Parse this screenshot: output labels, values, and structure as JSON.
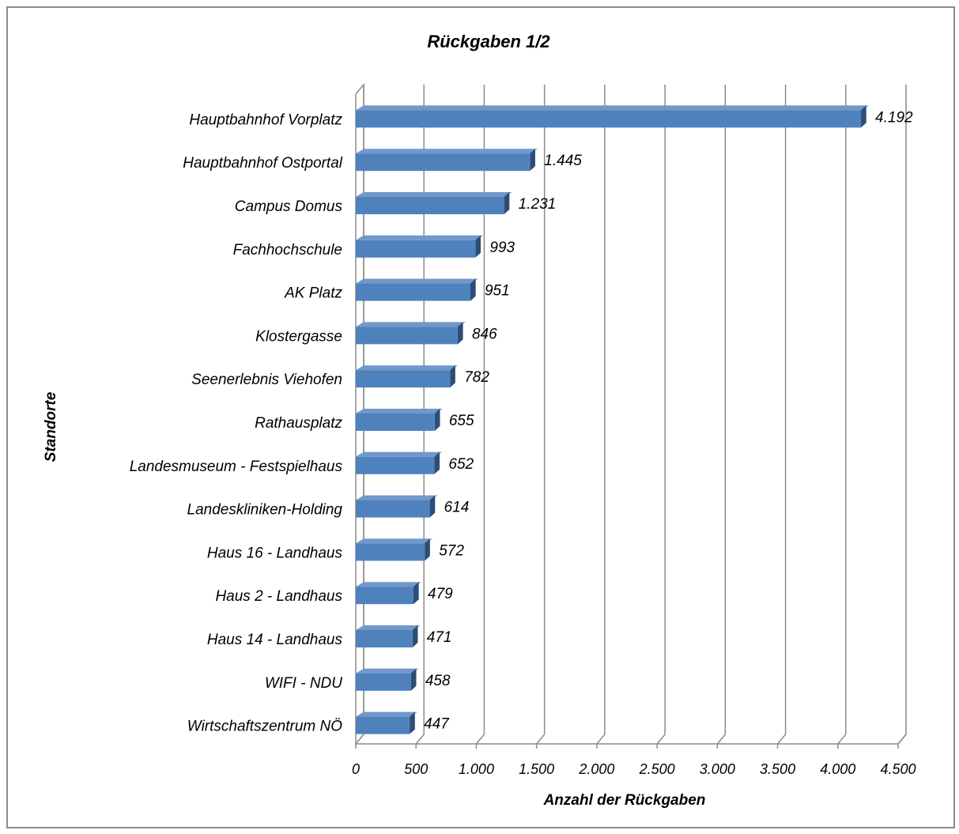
{
  "chart_data": {
    "type": "bar",
    "orientation": "horizontal",
    "title": "Rückgaben 1/2",
    "xlabel": "Anzahl der Rückgaben",
    "ylabel": "Standorte",
    "xlim": [
      0,
      4500
    ],
    "x_ticks": [
      0,
      500,
      1000,
      1500,
      2000,
      2500,
      3000,
      3500,
      4000,
      4500
    ],
    "x_tick_labels": [
      "0",
      "500",
      "1.000",
      "1.500",
      "2.000",
      "2.500",
      "3.000",
      "3.500",
      "4.000",
      "4.500"
    ],
    "grid": true,
    "legend": "none",
    "style": "3d",
    "colors": {
      "bar": "#4f81bd",
      "bar_top": "#7198c9",
      "bar_side": "#2c4d75",
      "grid": "#8c8c8c"
    },
    "categories": [
      "Hauptbahnhof Vorplatz",
      "Hauptbahnhof Ostportal",
      "Campus Domus",
      "Fachhochschule",
      "AK Platz",
      "Klostergasse",
      "Seenerlebnis Viehofen",
      "Rathausplatz",
      "Landesmuseum - Festspielhaus",
      "Landeskliniken-Holding",
      "Haus 16 - Landhaus",
      "Haus 2 - Landhaus",
      "Haus 14 - Landhaus",
      "WIFI - NDU",
      "Wirtschaftszentrum NÖ"
    ],
    "values": [
      4192,
      1445,
      1231,
      993,
      951,
      846,
      782,
      655,
      652,
      614,
      572,
      479,
      471,
      458,
      447
    ],
    "data_labels": [
      "4.192",
      "1.445",
      "1.231",
      "993",
      "951",
      "846",
      "782",
      "655",
      "652",
      "614",
      "572",
      "479",
      "471",
      "458",
      "447"
    ]
  }
}
